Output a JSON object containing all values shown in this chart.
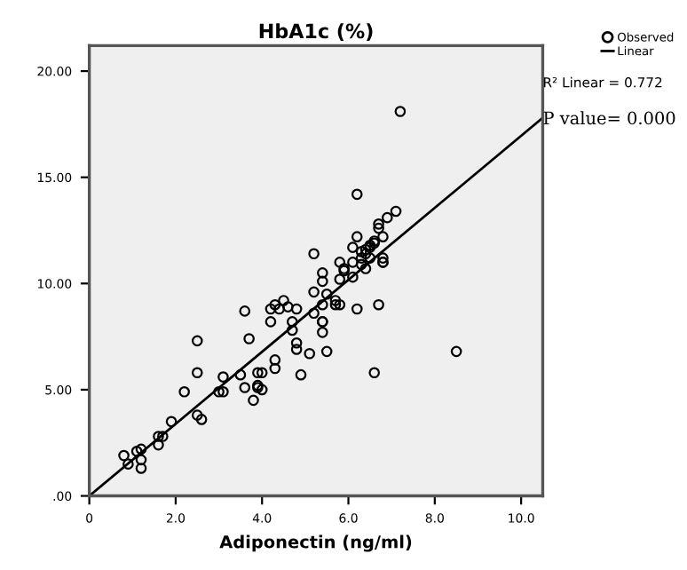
{
  "chart_data": {
    "type": "scatter",
    "title": "HbA1c (%)",
    "xlabel": "Adiponectin (ng/ml)",
    "xlim": [
      0,
      10.5
    ],
    "ylim": [
      0,
      21.2
    ],
    "xticks": [
      0,
      {
        "value": 2,
        "label": "2.0"
      },
      {
        "value": 4,
        "label": "4.0"
      },
      {
        "value": 6,
        "label": "6.0"
      },
      {
        "value": 8,
        "label": "8.0"
      },
      {
        "value": 10,
        "label": "10.0"
      }
    ],
    "yticks": [
      {
        "value": 0,
        "label": ".00"
      },
      {
        "value": 5,
        "label": "5.00"
      },
      {
        "value": 10,
        "label": "10.00"
      },
      {
        "value": 15,
        "label": "15.00"
      },
      {
        "value": 20,
        "label": "20.00"
      }
    ],
    "grid": false,
    "legend": "top right",
    "marker": "circle",
    "annotations": [
      "R² Linear = 0.772",
      "P value= 0.000"
    ],
    "series": [
      {
        "name": "Observed",
        "color": "#000000",
        "x": [
          0.8,
          0.9,
          1.1,
          1.2,
          1.2,
          1.2,
          1.6,
          1.6,
          1.7,
          1.9,
          2.2,
          2.5,
          2.6,
          2.5,
          2.5,
          3.0,
          3.1,
          3.1,
          3.5,
          3.6,
          3.7,
          3.6,
          3.8,
          3.9,
          3.9,
          4.0,
          3.9,
          4.0,
          4.3,
          4.3,
          4.2,
          4.2,
          4.3,
          4.4,
          4.5,
          4.6,
          4.7,
          4.7,
          4.8,
          4.8,
          4.9,
          4.8,
          5.1,
          5.2,
          5.2,
          5.2,
          5.4,
          5.4,
          5.4,
          5.4,
          5.5,
          5.7,
          5.7,
          5.8,
          5.8,
          5.9,
          6.1,
          6.2,
          6.2,
          6.3,
          6.3,
          6.4,
          6.5,
          6.5,
          6.6,
          6.7,
          6.7,
          6.8,
          6.6,
          6.8,
          6.2,
          7.1,
          6.9,
          6.7,
          6.8,
          6.6,
          6.8,
          8.5,
          5.5,
          5.4,
          5.4,
          5.8,
          6.1,
          6.3,
          6.4,
          6.5,
          6.4,
          6.1,
          5.9,
          7.2
        ],
        "values": [
          1.9,
          1.5,
          2.1,
          2.2,
          1.7,
          1.3,
          2.8,
          2.4,
          2.8,
          3.5,
          4.9,
          3.8,
          3.6,
          7.3,
          5.8,
          4.9,
          4.9,
          5.6,
          5.7,
          5.1,
          7.4,
          8.7,
          4.5,
          5.1,
          5.8,
          5.8,
          5.2,
          5.0,
          6.0,
          6.4,
          8.2,
          8.8,
          9.0,
          8.8,
          9.2,
          8.9,
          8.2,
          7.8,
          8.8,
          6.9,
          5.7,
          7.2,
          6.7,
          8.6,
          11.4,
          9.6,
          9.0,
          10.5,
          10.1,
          8.2,
          9.5,
          9.2,
          9.0,
          10.2,
          11.0,
          10.6,
          11.7,
          8.8,
          12.2,
          11.2,
          10.9,
          11.4,
          11.7,
          11.2,
          11.9,
          12.6,
          9.0,
          11.2,
          5.8,
          11.0,
          14.2,
          13.4,
          13.1,
          12.8,
          12.2,
          12.0,
          11.0,
          6.8,
          6.8,
          8.2,
          7.7,
          9.0,
          11.0,
          11.5,
          11.6,
          11.8,
          10.7,
          10.3,
          10.7,
          18.1
        ]
      },
      {
        "name": "Linear",
        "type": "line",
        "color": "#000000",
        "marker": "none",
        "x": [
          0,
          10.5
        ],
        "values": [
          0,
          17.8
        ]
      }
    ]
  }
}
